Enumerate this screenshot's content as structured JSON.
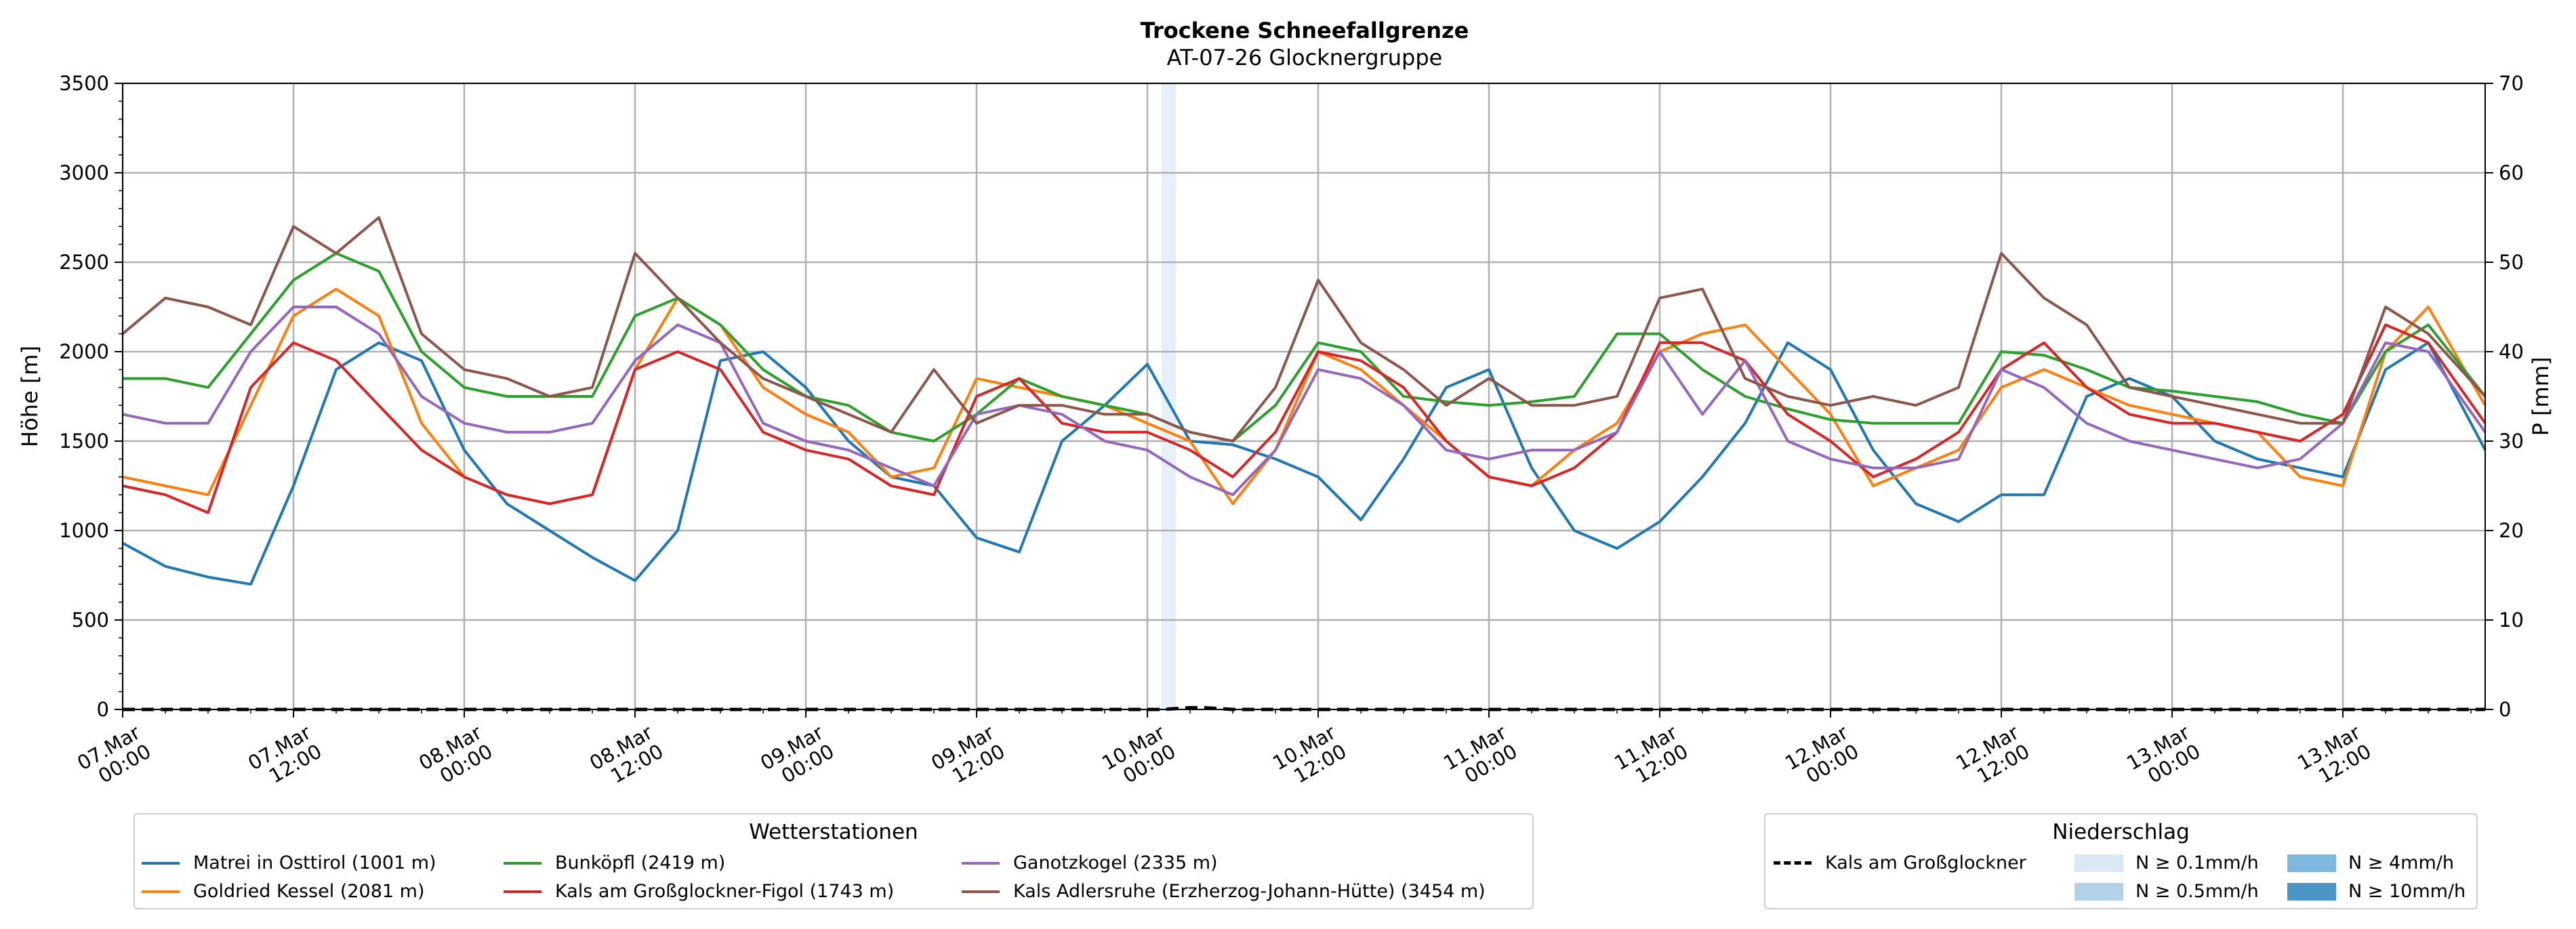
{
  "chart_data": {
    "type": "line",
    "title": "Trockene Schneefallgrenze",
    "subtitle": "AT-07-26 Glocknergruppe",
    "ylabel": "Höhe [m]",
    "ylabel_right": "P [mm]",
    "ylim": [
      0,
      3500
    ],
    "ylim_right": [
      0,
      70
    ],
    "yticks": [
      "0",
      "500",
      "1000",
      "1500",
      "2000",
      "2500",
      "3000",
      "3500"
    ],
    "yticks_right": [
      "0",
      "10",
      "20",
      "30",
      "40",
      "50",
      "60",
      "70"
    ],
    "x_range_hours": [
      0,
      166
    ],
    "xticks": [
      {
        "h": 0,
        "line1": "07.Mar",
        "line2": "00:00"
      },
      {
        "h": 12,
        "line1": "07.Mar",
        "line2": "12:00"
      },
      {
        "h": 24,
        "line1": "08.Mar",
        "line2": "00:00"
      },
      {
        "h": 36,
        "line1": "08.Mar",
        "line2": "12:00"
      },
      {
        "h": 48,
        "line1": "09.Mar",
        "line2": "00:00"
      },
      {
        "h": 60,
        "line1": "09.Mar",
        "line2": "12:00"
      },
      {
        "h": 72,
        "line1": "10.Mar",
        "line2": "00:00"
      },
      {
        "h": 84,
        "line1": "10.Mar",
        "line2": "12:00"
      },
      {
        "h": 96,
        "line1": "11.Mar",
        "line2": "00:00"
      },
      {
        "h": 108,
        "line1": "11.Mar",
        "line2": "12:00"
      },
      {
        "h": 120,
        "line1": "12.Mar",
        "line2": "00:00"
      },
      {
        "h": 132,
        "line1": "12.Mar",
        "line2": "12:00"
      },
      {
        "h": 144,
        "line1": "13.Mar",
        "line2": "00:00"
      },
      {
        "h": 156,
        "line1": "13.Mar",
        "line2": "12:00"
      }
    ],
    "grid": true,
    "precip_band": {
      "h_start": 73,
      "h_end": 74,
      "level": "N ≥ 0.1mm/h"
    },
    "precip_line": {
      "name": "Kals am Großglockner",
      "x": [
        0,
        73,
        74,
        75,
        76,
        77,
        78,
        166
      ],
      "values": [
        0,
        0,
        0.1,
        0.2,
        0.2,
        0.1,
        0,
        0
      ]
    },
    "series": [
      {
        "name": "Matrei in Osttirol (1001 m)",
        "color": "#1f77b4",
        "x": [
          0,
          3,
          6,
          9,
          12,
          15,
          18,
          21,
          24,
          27,
          30,
          33,
          36,
          39,
          42,
          45,
          48,
          51,
          54,
          57,
          60,
          63,
          66,
          69,
          72,
          75,
          78,
          81,
          84,
          87,
          90,
          93,
          96,
          99,
          102,
          105,
          108,
          111,
          114,
          117,
          120,
          123,
          126,
          129,
          132,
          135,
          138,
          141,
          144,
          147,
          150,
          153,
          156,
          159,
          162,
          166
        ],
        "values": [
          930,
          800,
          740,
          700,
          1250,
          1900,
          2050,
          1950,
          1450,
          1150,
          1000,
          850,
          720,
          1000,
          1950,
          2000,
          1800,
          1500,
          1300,
          1250,
          960,
          880,
          1500,
          1700,
          1930,
          1500,
          1480,
          1400,
          1300,
          1060,
          1400,
          1800,
          1900,
          1350,
          1000,
          900,
          1050,
          1300,
          1600,
          2050,
          1900,
          1450,
          1150,
          1050,
          1200,
          1200,
          1750,
          1850,
          1750,
          1500,
          1400,
          1350,
          1300,
          1900,
          2050,
          1450
        ]
      },
      {
        "name": "Goldried Kessel (2081 m)",
        "color": "#ff7f0e",
        "x": [
          0,
          3,
          6,
          9,
          12,
          15,
          18,
          21,
          24,
          27,
          30,
          33,
          36,
          39,
          42,
          45,
          48,
          51,
          54,
          57,
          60,
          63,
          66,
          69,
          72,
          75,
          78,
          81,
          84,
          87,
          90,
          93,
          96,
          99,
          102,
          105,
          108,
          111,
          114,
          117,
          120,
          123,
          126,
          129,
          132,
          135,
          138,
          141,
          144,
          147,
          150,
          153,
          156,
          159,
          162,
          166
        ],
        "values": [
          1300,
          1250,
          1200,
          1700,
          2200,
          2350,
          2200,
          1600,
          1300,
          1200,
          1150,
          1200,
          1900,
          2300,
          2150,
          1800,
          1650,
          1550,
          1300,
          1350,
          1850,
          1800,
          1750,
          1700,
          1600,
          1500,
          1150,
          1450,
          2000,
          1900,
          1700,
          1500,
          1300,
          1250,
          1450,
          1600,
          2000,
          2100,
          2150,
          1900,
          1650,
          1250,
          1350,
          1450,
          1800,
          1900,
          1800,
          1700,
          1650,
          1600,
          1550,
          1300,
          1250,
          2000,
          2250,
          1700
        ]
      },
      {
        "name": "Bunköpfl (2419 m)",
        "color": "#2ca02c",
        "x": [
          0,
          3,
          6,
          9,
          12,
          15,
          18,
          21,
          24,
          27,
          30,
          33,
          36,
          39,
          42,
          45,
          48,
          51,
          54,
          57,
          60,
          63,
          66,
          69,
          72,
          75,
          78,
          81,
          84,
          87,
          90,
          93,
          96,
          99,
          102,
          105,
          108,
          111,
          114,
          117,
          120,
          123,
          126,
          129,
          132,
          135,
          138,
          141,
          144,
          147,
          150,
          153,
          156,
          159,
          162,
          166
        ],
        "values": [
          1850,
          1850,
          1800,
          2100,
          2400,
          2550,
          2450,
          2000,
          1800,
          1750,
          1750,
          1750,
          2200,
          2300,
          2150,
          1900,
          1750,
          1700,
          1550,
          1500,
          1650,
          1850,
          1750,
          1700,
          1650,
          1550,
          1500,
          1700,
          2050,
          2000,
          1750,
          1720,
          1700,
          1720,
          1750,
          2100,
          2100,
          1900,
          1750,
          1680,
          1620,
          1600,
          1600,
          1600,
          2000,
          1980,
          1900,
          1800,
          1780,
          1750,
          1720,
          1650,
          1600,
          2000,
          2150,
          1750
        ]
      },
      {
        "name": "Kals am Großglockner-Figol (1743 m)",
        "color": "#d62728",
        "x": [
          0,
          3,
          6,
          9,
          12,
          15,
          18,
          21,
          24,
          27,
          30,
          33,
          36,
          39,
          42,
          45,
          48,
          51,
          54,
          57,
          60,
          63,
          66,
          69,
          72,
          75,
          78,
          81,
          84,
          87,
          90,
          93,
          96,
          99,
          102,
          105,
          108,
          111,
          114,
          117,
          120,
          123,
          126,
          129,
          132,
          135,
          138,
          141,
          144,
          147,
          150,
          153,
          156,
          159,
          162,
          166
        ],
        "values": [
          1250,
          1200,
          1100,
          1800,
          2050,
          1950,
          1700,
          1450,
          1300,
          1200,
          1150,
          1200,
          1900,
          2000,
          1900,
          1550,
          1450,
          1400,
          1250,
          1200,
          1750,
          1850,
          1600,
          1550,
          1550,
          1450,
          1300,
          1550,
          2000,
          1950,
          1800,
          1500,
          1300,
          1250,
          1350,
          1550,
          2050,
          2050,
          1950,
          1650,
          1500,
          1300,
          1400,
          1550,
          1900,
          2050,
          1800,
          1650,
          1600,
          1600,
          1550,
          1500,
          1650,
          2150,
          2050,
          1600
        ]
      },
      {
        "name": "Ganotzkogel (2335 m)",
        "color": "#9467bd",
        "x": [
          0,
          3,
          6,
          9,
          12,
          15,
          18,
          21,
          24,
          27,
          30,
          33,
          36,
          39,
          42,
          45,
          48,
          51,
          54,
          57,
          60,
          63,
          66,
          69,
          72,
          75,
          78,
          81,
          84,
          87,
          90,
          93,
          96,
          99,
          102,
          105,
          108,
          111,
          114,
          117,
          120,
          123,
          126,
          129,
          132,
          135,
          138,
          141,
          144,
          147,
          150,
          153,
          156,
          159,
          162,
          166
        ],
        "values": [
          1650,
          1600,
          1600,
          2000,
          2250,
          2250,
          2100,
          1750,
          1600,
          1550,
          1550,
          1600,
          1950,
          2150,
          2050,
          1600,
          1500,
          1450,
          1350,
          1250,
          1650,
          1700,
          1650,
          1500,
          1450,
          1300,
          1200,
          1450,
          1900,
          1850,
          1700,
          1450,
          1400,
          1450,
          1450,
          1550,
          2000,
          1650,
          1950,
          1500,
          1400,
          1350,
          1350,
          1400,
          1900,
          1800,
          1600,
          1500,
          1450,
          1400,
          1350,
          1400,
          1600,
          2050,
          2000,
          1550
        ]
      },
      {
        "name": "Kals Adlersruhe (Erzherzog-Johann-Hütte) (3454 m)",
        "color": "#8c564b",
        "x": [
          0,
          3,
          6,
          9,
          12,
          15,
          18,
          21,
          24,
          27,
          30,
          33,
          36,
          39,
          42,
          45,
          48,
          51,
          54,
          57,
          60,
          63,
          66,
          69,
          72,
          75,
          78,
          81,
          84,
          87,
          90,
          93,
          96,
          99,
          102,
          105,
          108,
          111,
          114,
          117,
          120,
          123,
          126,
          129,
          132,
          135,
          138,
          141,
          144,
          147,
          150,
          153,
          156,
          159,
          162,
          166
        ],
        "values": [
          2100,
          2300,
          2250,
          2150,
          2700,
          2550,
          2750,
          2100,
          1900,
          1850,
          1750,
          1800,
          2550,
          2300,
          2050,
          1850,
          1750,
          1650,
          1550,
          1900,
          1600,
          1700,
          1700,
          1650,
          1650,
          1550,
          1500,
          1800,
          2400,
          2050,
          1900,
          1700,
          1850,
          1700,
          1700,
          1750,
          2300,
          2350,
          1850,
          1750,
          1700,
          1750,
          1700,
          1800,
          2550,
          2300,
          2150,
          1800,
          1750,
          1700,
          1650,
          1600,
          1600,
          2250,
          2100,
          1750
        ]
      }
    ]
  },
  "legend_stations": {
    "title": "Wetterstationen",
    "items": [
      {
        "label": "Matrei in Osttirol (1001 m)",
        "color": "#1f77b4"
      },
      {
        "label": "Goldried Kessel (2081 m)",
        "color": "#ff7f0e"
      },
      {
        "label": "Bunköpfl (2419 m)",
        "color": "#2ca02c"
      },
      {
        "label": "Kals am Großglockner-Figol (1743 m)",
        "color": "#d62728"
      },
      {
        "label": "Ganotzkogel (2335 m)",
        "color": "#9467bd"
      },
      {
        "label": "Kals Adlersruhe (Erzherzog-Johann-Hütte) (3454 m)",
        "color": "#8c564b"
      }
    ]
  },
  "legend_precip": {
    "title": "Niederschlag",
    "line_label": "Kals am Großglockner",
    "items": [
      {
        "label": "N ≥ 0.1mm/h",
        "color": "#dbe9f6"
      },
      {
        "label": "N ≥ 0.5mm/h",
        "color": "#b3d1e8"
      },
      {
        "label": "N ≥ 4mm/h",
        "color": "#7fb8df"
      },
      {
        "label": "N ≥ 10mm/h",
        "color": "#4a95c6"
      }
    ]
  }
}
